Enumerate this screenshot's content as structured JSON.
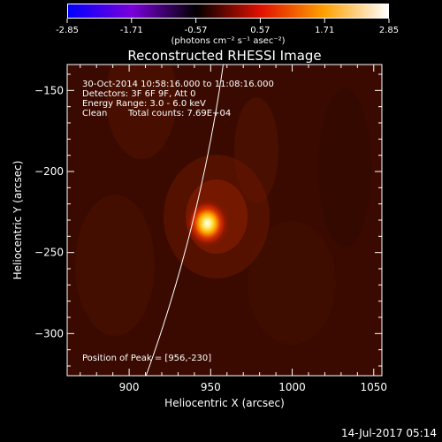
{
  "colorbar": {
    "ticks": [
      "-2.85",
      "-1.71",
      "-0.57",
      "0.57",
      "1.71",
      "2.85"
    ],
    "unit_label": "(photons cm⁻² s⁻¹ asec⁻²)",
    "colormap": [
      "#0000ff",
      "#7a00d9",
      "#000000",
      "#e01000",
      "#ffa000",
      "#ffffff"
    ]
  },
  "chart_data": {
    "type": "heatmap",
    "title": "Reconstructed RHESSI Image",
    "xlabel": "Heliocentric X (arcsec)",
    "ylabel": "Heliocentric Y (arcsec)",
    "xlim": [
      862,
      1055
    ],
    "ylim": [
      -326,
      -134
    ],
    "xticks": [
      900,
      950,
      1000,
      1050
    ],
    "yticks": [
      -150,
      -200,
      -250,
      -300
    ],
    "annotations": {
      "time_range": "30-Oct-2014 10:58:16.000 to 11:08:16.000",
      "detectors": "Detectors: 3F 6F 9F, Att 0",
      "energy_range": "Energy Range: 3.0 - 6.0 keV",
      "method": "Clean",
      "total_counts": "Total counts: 7.69E+04",
      "peak_text": "Position of Peak = [956,-230]"
    },
    "peak": {
      "x": 956,
      "y": -230
    },
    "limb": {
      "radius_arcsec": 967
    },
    "background_color": "#3a0a00"
  },
  "footer": {
    "timestamp": "14-Jul-2017 05:14"
  }
}
